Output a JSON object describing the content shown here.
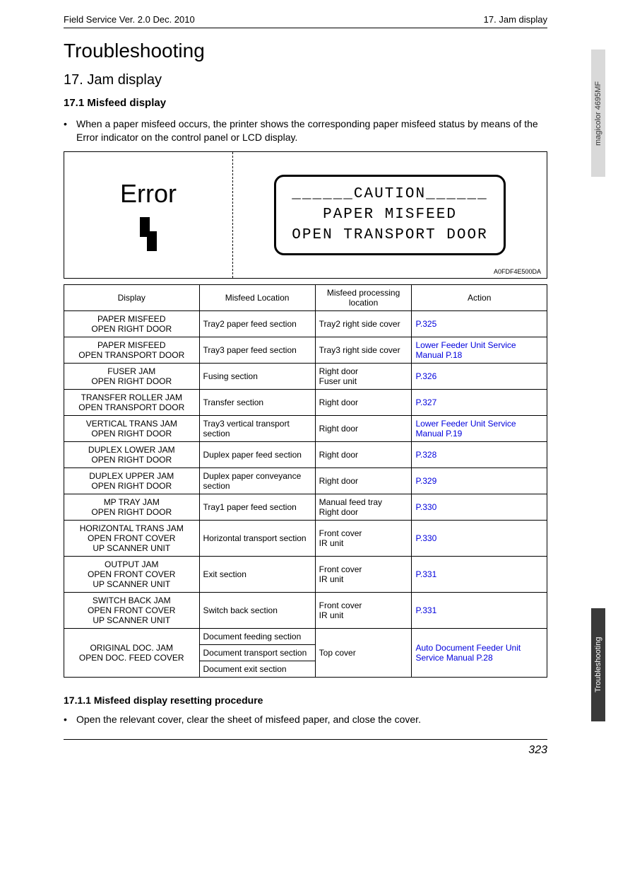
{
  "header": {
    "left": "Field Service Ver. 2.0 Dec. 2010",
    "right": "17. Jam display"
  },
  "titles": {
    "main": "Troubleshooting",
    "section": "17.  Jam display",
    "subsection": "17.1   Misfeed display",
    "subsub": "17.1.1      Misfeed display resetting procedure"
  },
  "intro": "When a paper misfeed occurs, the printer shows the corresponding paper misfeed status by means of the Error indicator on the control panel or LCD display.",
  "diagram": {
    "error_label": "Error",
    "lcd_line1": "______CAUTION______",
    "lcd_line2": "PAPER MISFEED",
    "lcd_line3": "OPEN TRANSPORT DOOR",
    "code": "A0FDF4E500DA"
  },
  "table": {
    "headers": [
      "Display",
      "Misfeed Location",
      "Misfeed processing location",
      "Action"
    ],
    "col_widths": [
      "28%",
      "24%",
      "20%",
      "28%"
    ],
    "rows": [
      {
        "display": "PAPER MISFEED\nOPEN RIGHT DOOR",
        "loc": "Tray2 paper feed section",
        "proc": "Tray2 right side cover",
        "action": "P.325",
        "link": true
      },
      {
        "display": "PAPER MISFEED\nOPEN TRANSPORT DOOR",
        "loc": "Tray3 paper feed section",
        "proc": "Tray3 right side cover",
        "action": "Lower Feeder Unit Service Manual P.18",
        "link": true
      },
      {
        "display": "FUSER JAM\nOPEN RIGHT DOOR",
        "loc": "Fusing section",
        "proc": "Right door\nFuser unit",
        "action": "P.326",
        "link": true
      },
      {
        "display": "TRANSFER ROLLER JAM\nOPEN TRANSPORT DOOR",
        "loc": "Transfer section",
        "proc": "Right door",
        "action": "P.327",
        "link": true
      },
      {
        "display": "VERTICAL TRANS JAM\nOPEN RIGHT DOOR",
        "loc": "Tray3 vertical transport section",
        "proc": "Right door",
        "action": "Lower Feeder Unit Service Manual P.19",
        "link": true
      },
      {
        "display": "DUPLEX LOWER JAM\nOPEN RIGHT DOOR",
        "loc": "Duplex paper feed section",
        "proc": "Right door",
        "action": "P.328",
        "link": true
      },
      {
        "display": "DUPLEX UPPER JAM\nOPEN RIGHT DOOR",
        "loc": "Duplex paper conveyance section",
        "proc": "Right door",
        "action": "P.329",
        "link": true
      },
      {
        "display": "MP TRAY JAM\nOPEN RIGHT DOOR",
        "loc": "Tray1 paper feed section",
        "proc": "Manual feed tray\nRight door",
        "action": "P.330",
        "link": true
      },
      {
        "display": "HORIZONTAL TRANS JAM\nOPEN FRONT COVER\nUP SCANNER UNIT",
        "loc": "Horizontal transport section",
        "proc": "Front cover\nIR unit",
        "action": "P.330",
        "link": true
      },
      {
        "display": "OUTPUT JAM\nOPEN FRONT COVER\nUP SCANNER UNIT",
        "loc": "Exit section",
        "proc": "Front cover\nIR unit",
        "action": "P.331",
        "link": true
      },
      {
        "display": "SWITCH BACK JAM\nOPEN FRONT COVER\nUP SCANNER UNIT",
        "loc": "Switch back section",
        "proc": "Front cover\nIR unit",
        "action": "P.331",
        "link": true
      }
    ],
    "merged_row": {
      "display": "ORIGINAL DOC. JAM\nOPEN DOC. FEED COVER",
      "locs": [
        "Document feeding section",
        "Document transport section",
        "Document exit section"
      ],
      "proc": "Top cover",
      "action": "Auto Document Feeder Unit Service Manual P.28",
      "link": true
    }
  },
  "footer_bullet": "Open the relevant cover, clear the sheet of misfeed paper, and close the cover.",
  "page_number": "323",
  "side_tabs": {
    "top": "magicolor 4695MF",
    "bottom": "Troubleshooting"
  },
  "colors": {
    "link": "#0000dd",
    "tab_top_bg": "#d9d9d9",
    "tab_bottom_bg": "#3a3a3a"
  }
}
